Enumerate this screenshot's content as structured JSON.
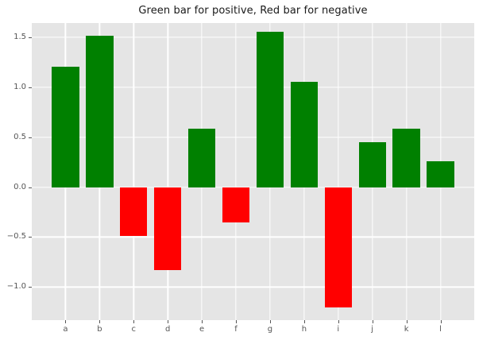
{
  "chart_data": {
    "type": "bar",
    "title": "Green bar for positive, Red bar for negative",
    "categories": [
      "a",
      "b",
      "c",
      "d",
      "e",
      "f",
      "g",
      "h",
      "i",
      "j",
      "k",
      "l"
    ],
    "values": [
      1.2,
      1.51,
      -0.49,
      -0.83,
      0.58,
      -0.35,
      1.55,
      1.05,
      -1.2,
      0.45,
      0.58,
      0.26
    ],
    "positive_color": "#008000",
    "negative_color": "#ff0000",
    "bar_width": 0.8,
    "xlabel": "",
    "ylabel": "",
    "xlim": [
      -0.99,
      11.99
    ],
    "ylim": [
      -1.33,
      1.64
    ],
    "yticks": [
      1.5,
      1.0,
      0.5,
      0.0,
      -0.5,
      -1.0
    ],
    "ytick_labels": [
      "1.5",
      "1.0",
      "0.5",
      "0.0",
      "−0.5",
      "−1.0"
    ],
    "grid": true,
    "legend": false,
    "style": {
      "figure_background": "#ffffff",
      "plot_background": "#e5e5e5",
      "grid_color": "#ffffff",
      "tick_color": "#555555",
      "title_color": "#1a1a1a"
    }
  }
}
